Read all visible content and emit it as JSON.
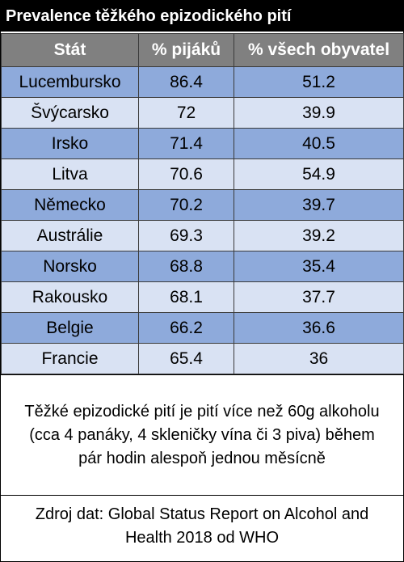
{
  "title": "Prevalence těžkého epizodického pití",
  "table": {
    "header": [
      "Stát",
      "% pijáků",
      "% všech obyvatel"
    ],
    "rows": [
      [
        "Lucembursko",
        86.4,
        51.2
      ],
      [
        "Švýcarsko",
        72,
        39.9
      ],
      [
        "Irsko",
        71.4,
        40.5
      ],
      [
        "Litva",
        70.6,
        54.9
      ],
      [
        "Německo",
        70.2,
        39.7
      ],
      [
        "Austrálie",
        69.3,
        39.2
      ],
      [
        "Norsko",
        68.8,
        35.4
      ],
      [
        "Rakousko",
        68.1,
        37.7
      ],
      [
        "Belgie",
        66.2,
        36.6
      ],
      [
        "Francie",
        65.4,
        36
      ]
    ]
  },
  "note": "Těžké epizodické pití je pití více než 60g alkoholu (cca 4 panáky, 4 skleničky vína či 3 piva) během pár hodin alespoň jednou měsícně",
  "source": "Zdroj dat: Global Status Report on Alcohol and Health 2018 od WHO"
}
